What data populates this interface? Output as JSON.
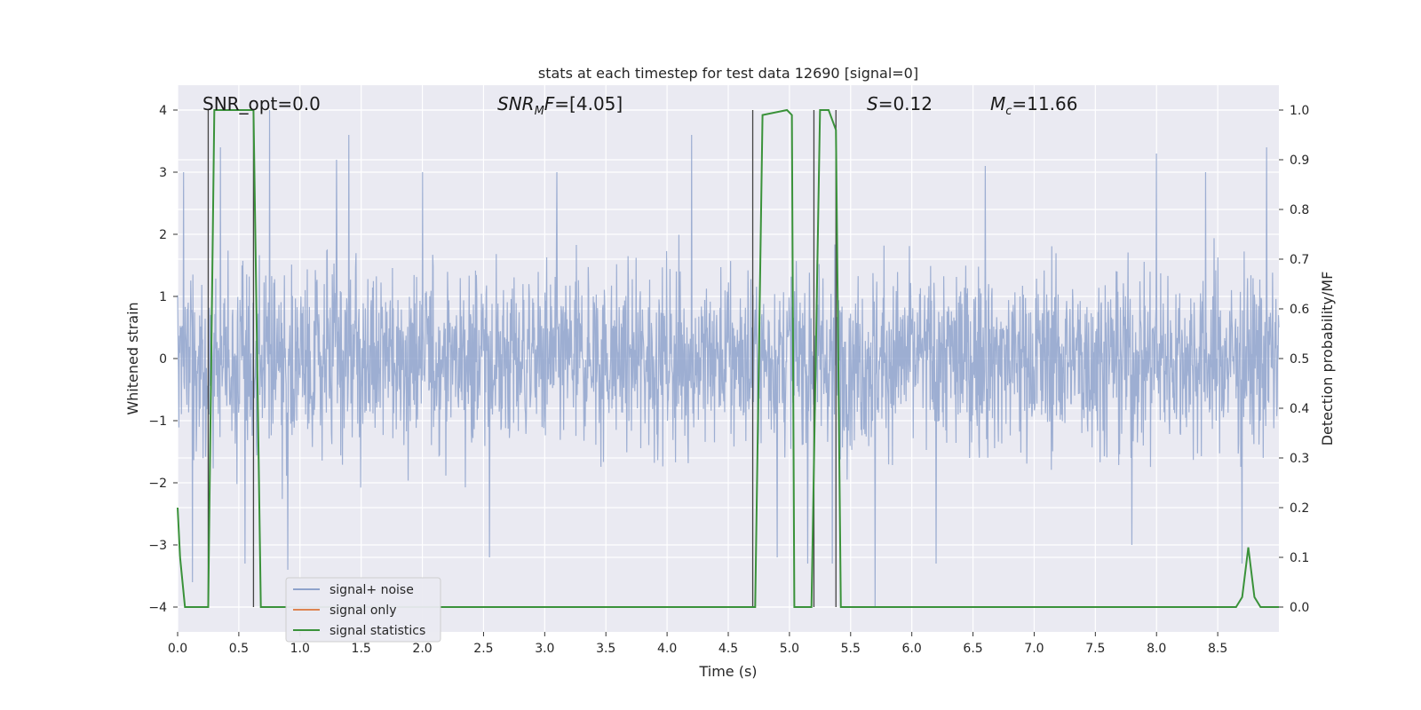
{
  "chart_data": {
    "type": "line",
    "title": "stats at each timestep for test data 12690 [signal=0]",
    "xlabel": "Time (s)",
    "ylabel": "Whitened strain",
    "ylabel_right": "Detection probability/MF",
    "xlim": [
      0.0,
      9.0
    ],
    "ylim": [
      -4.4,
      4.4
    ],
    "ylim_right": [
      -0.05,
      1.05
    ],
    "x_ticks": [
      "0.0",
      "0.5",
      "1.0",
      "1.5",
      "2.0",
      "2.5",
      "3.0",
      "3.5",
      "4.0",
      "4.5",
      "5.0",
      "5.5",
      "6.0",
      "6.5",
      "7.0",
      "7.5",
      "8.0",
      "8.5"
    ],
    "y_ticks": [
      "4",
      "3",
      "2",
      "1",
      "0",
      "−1",
      "−2",
      "−3",
      "−4"
    ],
    "y_ticks_right": [
      "1.0",
      "0.9",
      "0.8",
      "0.7",
      "0.6",
      "0.5",
      "0.4",
      "0.3",
      "0.2",
      "0.1",
      "0.0"
    ],
    "grid": true,
    "legend_position": "lower-left",
    "annotations": {
      "snr_opt": "SNR_opt=0.0",
      "snr_mf": "=[4.05]",
      "s_value": "=0.12",
      "mc_value": "=11.66"
    },
    "series": [
      {
        "name": "signal+ noise",
        "color": "#8fa3cc",
        "noise_amplitude_typical": 1.6,
        "spikes": [
          {
            "x": 0.05,
            "y": 3.0
          },
          {
            "x": 0.12,
            "y": -3.6
          },
          {
            "x": 0.35,
            "y": 3.4
          },
          {
            "x": 0.55,
            "y": -3.3
          },
          {
            "x": 0.75,
            "y": 4.0
          },
          {
            "x": 0.9,
            "y": -3.4
          },
          {
            "x": 1.4,
            "y": 3.6
          },
          {
            "x": 1.3,
            "y": 3.2
          },
          {
            "x": 2.0,
            "y": 3.0
          },
          {
            "x": 2.55,
            "y": -3.2
          },
          {
            "x": 3.1,
            "y": 3.0
          },
          {
            "x": 4.2,
            "y": 3.6
          },
          {
            "x": 4.9,
            "y": -3.2
          },
          {
            "x": 5.15,
            "y": -3.3
          },
          {
            "x": 5.35,
            "y": -3.3
          },
          {
            "x": 5.7,
            "y": -4.0
          },
          {
            "x": 6.2,
            "y": -3.3
          },
          {
            "x": 6.6,
            "y": 3.1
          },
          {
            "x": 7.8,
            "y": -3.0
          },
          {
            "x": 8.0,
            "y": 3.3
          },
          {
            "x": 8.4,
            "y": 3.0
          },
          {
            "x": 8.7,
            "y": -3.3
          },
          {
            "x": 8.9,
            "y": 3.4
          }
        ]
      },
      {
        "name": "signal only",
        "color": "#dd8452",
        "x": [
          0.0,
          9.0
        ],
        "y": [
          0.0,
          0.0
        ]
      },
      {
        "name": "signal statistics",
        "color": "#3a923a",
        "x": [
          0.0,
          0.02,
          0.06,
          0.25,
          0.3,
          0.62,
          0.68,
          0.7,
          4.68,
          4.72,
          4.78,
          4.98,
          5.02,
          5.04,
          5.12,
          5.18,
          5.25,
          5.32,
          5.38,
          5.42,
          5.5,
          8.65,
          8.7,
          8.75,
          8.8,
          8.85,
          8.9,
          9.0
        ],
        "y": [
          0.2,
          0.1,
          0.0,
          0.0,
          1.0,
          1.0,
          0.0,
          0.0,
          0.0,
          0.0,
          0.99,
          1.0,
          0.99,
          0.0,
          0.0,
          0.0,
          1.0,
          1.0,
          0.96,
          0.0,
          0.0,
          0.0,
          0.02,
          0.12,
          0.02,
          0.0,
          0.0,
          0.0
        ]
      }
    ],
    "vertical_markers": [
      0.25,
      0.62,
      4.7,
      5.2,
      5.38
    ]
  }
}
